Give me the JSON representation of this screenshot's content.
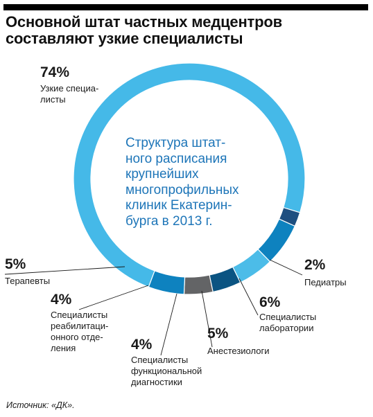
{
  "title_lines": [
    "Основной штат частных медцентров",
    "составляют узкие специалисты"
  ],
  "center_lines": [
    "Структура штат-",
    "ного расписания",
    "крупнейших",
    "многопрофильных",
    "клиник Екатерин-",
    "бурга в 2013 г."
  ],
  "source": "Источник: «ДК».",
  "chart_data": {
    "type": "pie",
    "donut": true,
    "title": "Основной штат частных медцентров составляют узкие специалисты",
    "center_text": "Структура штатного расписания крупнейших многопрофильных клиник Екатеринбурга в 2013 г.",
    "slices": [
      {
        "label_lines": [
          "Педиатры"
        ],
        "value": 2,
        "value_label": "2%",
        "color": "#1e4f80"
      },
      {
        "label_lines": [
          "Специалисты",
          "лаборатории"
        ],
        "value": 6,
        "value_label": "6%",
        "color": "#0e82bf"
      },
      {
        "label_lines": [
          "Анестезиологи"
        ],
        "value": 5,
        "value_label": "5%",
        "color": "#4cbce8"
      },
      {
        "label_lines": [
          "Специалисты",
          "функциональной",
          "диагностики"
        ],
        "value": 4,
        "value_label": "4%",
        "color": "#0b5482"
      },
      {
        "label_lines": [
          "Специалисты",
          "реабилитаци-",
          "онного отде-",
          "ления"
        ],
        "value": 4,
        "value_label": "4%",
        "color": "#636466"
      },
      {
        "label_lines": [
          "Терапевты"
        ],
        "value": 5,
        "value_label": "5%",
        "color": "#0e82bf"
      },
      {
        "label_lines": [
          "Узкие специа-",
          "листы"
        ],
        "value": 74,
        "value_label": "74%",
        "color": "#45b9e8"
      }
    ],
    "start_angle_deg": 17,
    "direction": "clockwise-from-right",
    "legend": "none"
  }
}
